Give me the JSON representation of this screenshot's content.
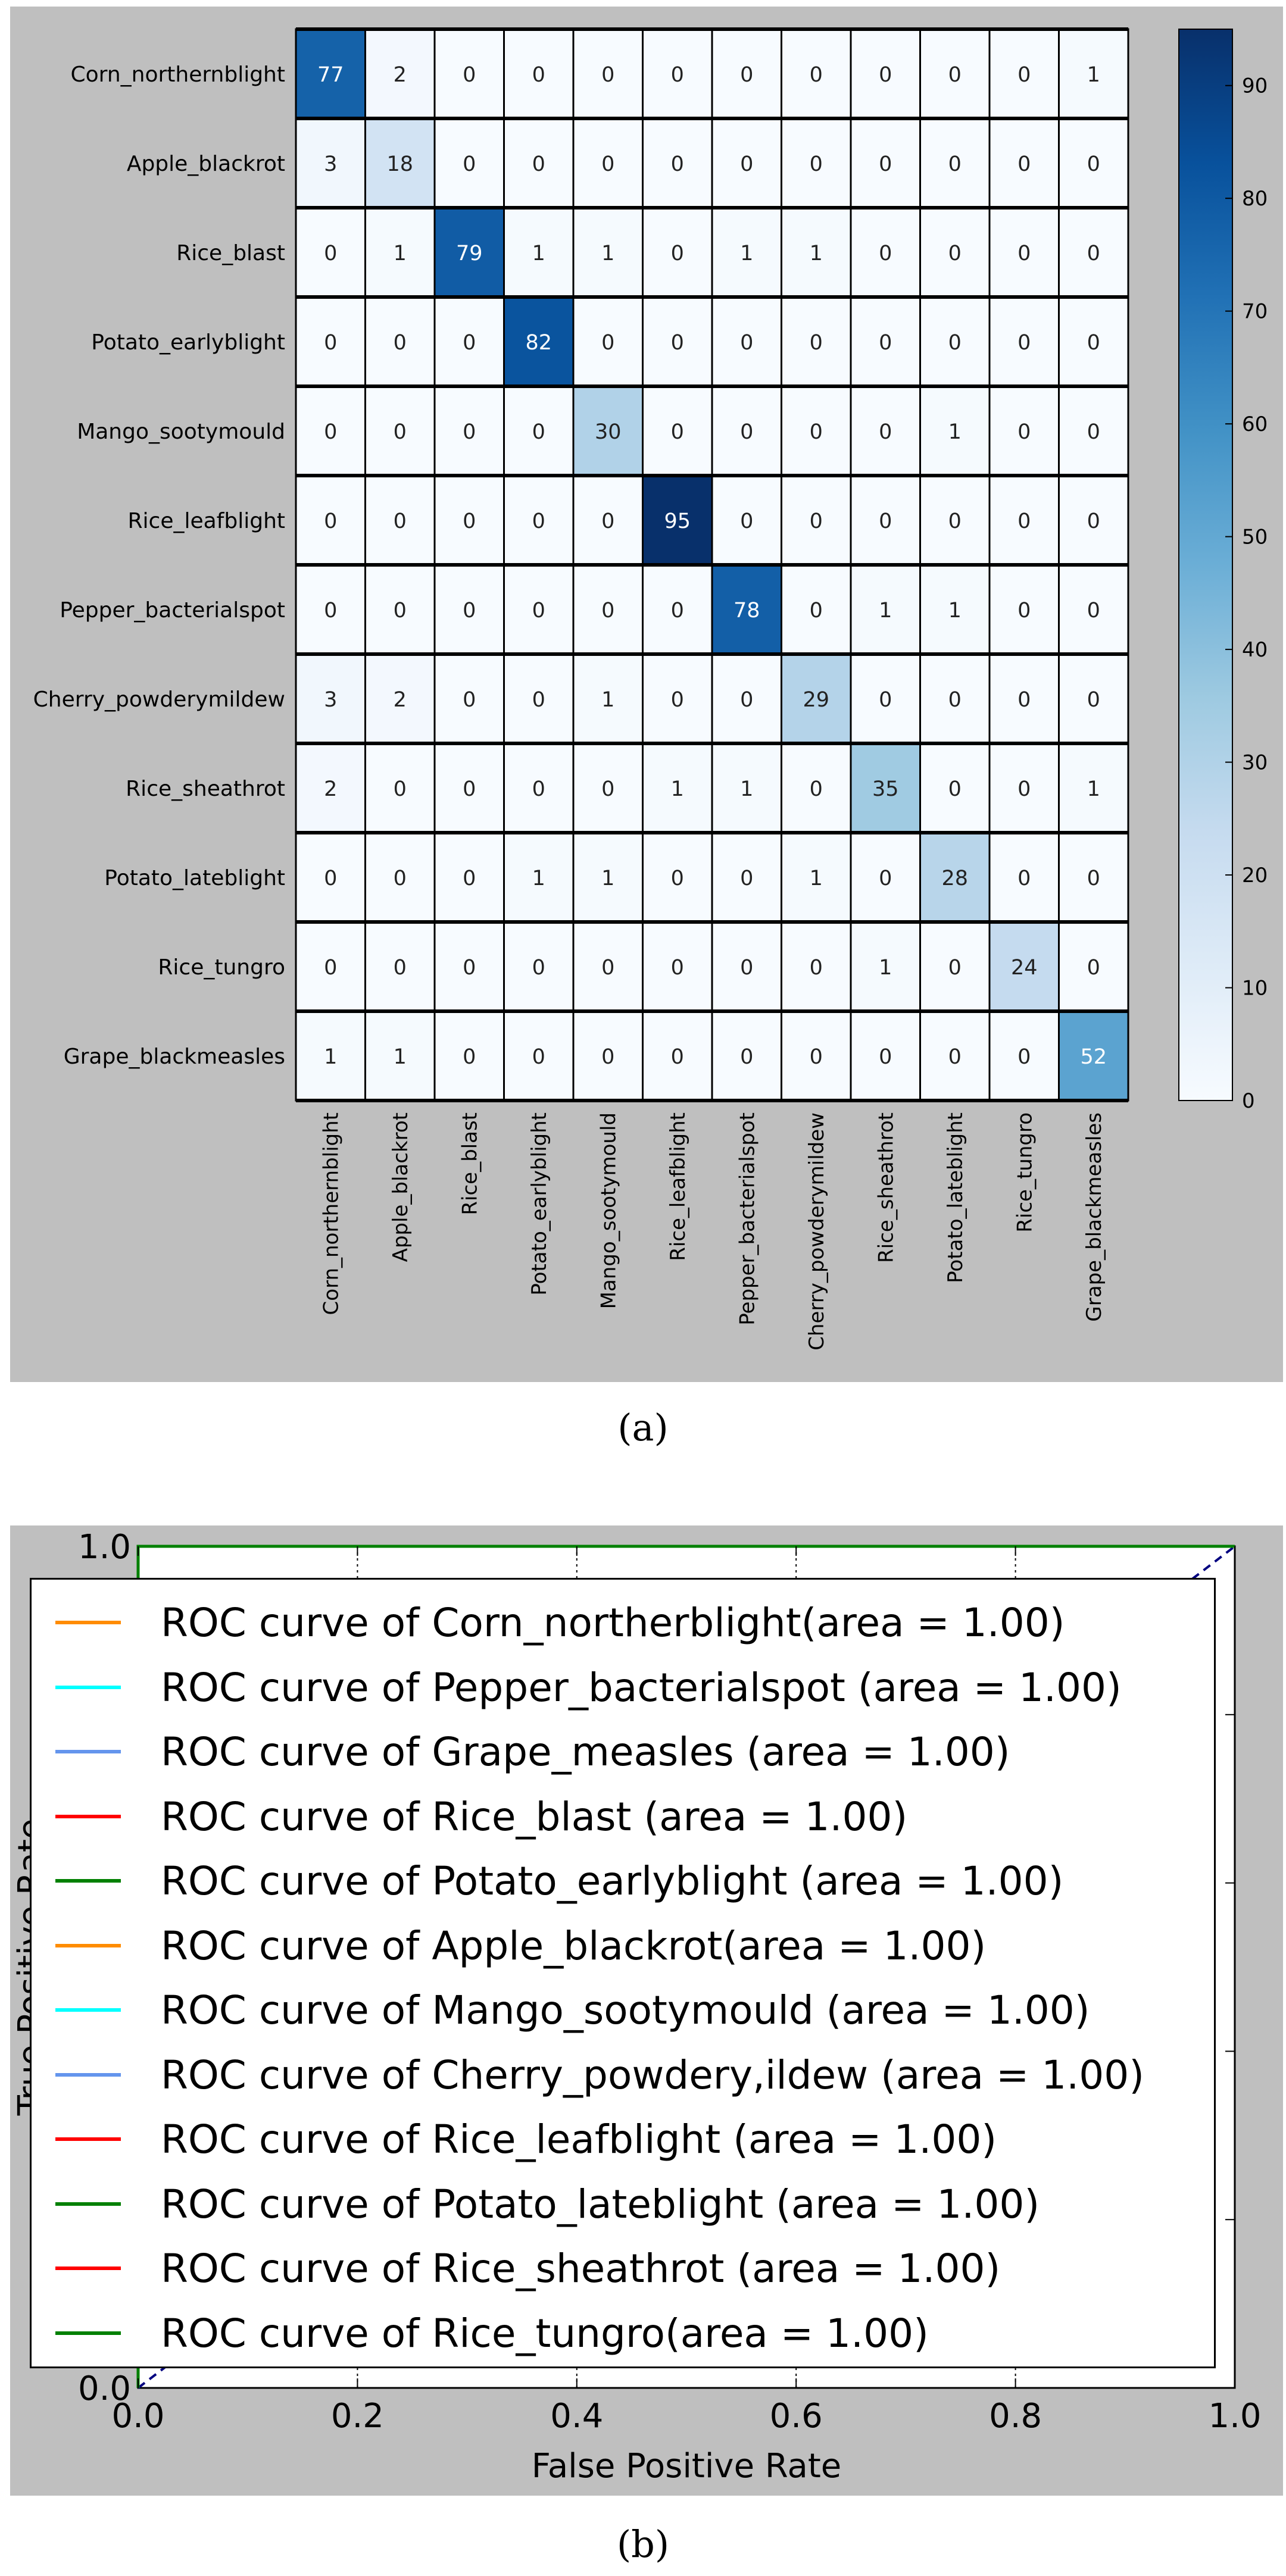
{
  "captions": {
    "a": "(a)",
    "b": "(b)"
  },
  "chart_data": [
    {
      "type": "heatmap",
      "title": "",
      "colormap": "Blues",
      "rows": [
        "Corn_northernblight",
        "Apple_blackrot",
        "Rice_blast",
        "Potato_earlyblight",
        "Mango_sootymould",
        "Rice_leafblight",
        "Pepper_bacterialspot",
        "Cherry_powderymildew",
        "Rice_sheathrot",
        "Potato_lateblight",
        "Rice_tungro",
        "Grape_blackmeasles"
      ],
      "columns": [
        "Corn_northernblight",
        "Apple_blackrot",
        "Rice_blast",
        "Potato_earlyblight",
        "Mango_sootymould",
        "Rice_leafblight",
        "Pepper_bacterialspot",
        "Cherry_powderymildew",
        "Rice_sheathrot",
        "Potato_lateblight",
        "Rice_tungro",
        "Grape_blackmeasles"
      ],
      "values": [
        [
          77,
          2,
          0,
          0,
          0,
          0,
          0,
          0,
          0,
          0,
          0,
          1
        ],
        [
          3,
          18,
          0,
          0,
          0,
          0,
          0,
          0,
          0,
          0,
          0,
          0
        ],
        [
          0,
          1,
          79,
          1,
          1,
          0,
          1,
          1,
          0,
          0,
          0,
          0
        ],
        [
          0,
          0,
          0,
          82,
          0,
          0,
          0,
          0,
          0,
          0,
          0,
          0
        ],
        [
          0,
          0,
          0,
          0,
          30,
          0,
          0,
          0,
          0,
          1,
          0,
          0
        ],
        [
          0,
          0,
          0,
          0,
          0,
          95,
          0,
          0,
          0,
          0,
          0,
          0
        ],
        [
          0,
          0,
          0,
          0,
          0,
          0,
          78,
          0,
          1,
          1,
          0,
          0
        ],
        [
          3,
          2,
          0,
          0,
          1,
          0,
          0,
          29,
          0,
          0,
          0,
          0
        ],
        [
          2,
          0,
          0,
          0,
          0,
          1,
          1,
          0,
          35,
          0,
          0,
          1
        ],
        [
          0,
          0,
          0,
          1,
          1,
          0,
          0,
          1,
          0,
          28,
          0,
          0
        ],
        [
          0,
          0,
          0,
          0,
          0,
          0,
          0,
          0,
          1,
          0,
          24,
          0
        ],
        [
          1,
          1,
          0,
          0,
          0,
          0,
          0,
          0,
          0,
          0,
          0,
          52
        ]
      ],
      "colorbar": {
        "range": [
          0,
          95
        ],
        "ticks": [
          "0",
          "10",
          "20",
          "30",
          "40",
          "50",
          "60",
          "70",
          "80",
          "90"
        ]
      }
    },
    {
      "type": "line",
      "title": "",
      "xlabel": "False Positive Rate",
      "ylabel": "True Positive Rate",
      "xlim": [
        0.0,
        1.0
      ],
      "ylim": [
        0.0,
        1.0
      ],
      "x_ticks": [
        "0.0",
        "0.2",
        "0.4",
        "0.6",
        "0.8",
        "1.0"
      ],
      "y_ticks": [
        "0.0",
        "1.0"
      ],
      "legend_position": "center",
      "series": [
        {
          "name": "ROC curve of Corn_northerblight(area = 1.00)",
          "color": "#ff8c00",
          "x": [
            0,
            0,
            1
          ],
          "y": [
            0,
            1,
            1
          ]
        },
        {
          "name": "ROC curve of Pepper_bacterialspot (area = 1.00)",
          "color": "#00ffff",
          "x": [
            0,
            0,
            1
          ],
          "y": [
            0,
            1,
            1
          ]
        },
        {
          "name": "ROC curve of Grape_measles (area = 1.00)",
          "color": "#6495ed",
          "x": [
            0,
            0,
            1
          ],
          "y": [
            0,
            1,
            1
          ]
        },
        {
          "name": "ROC curve of Rice_blast (area = 1.00)",
          "color": "#ff0000",
          "x": [
            0,
            0,
            1
          ],
          "y": [
            0,
            1,
            1
          ]
        },
        {
          "name": "ROC curve of Potato_earlyblight (area = 1.00)",
          "color": "#008000",
          "x": [
            0,
            0,
            1
          ],
          "y": [
            0,
            1,
            1
          ]
        },
        {
          "name": "ROC curve of Apple_blackrot(area = 1.00)",
          "color": "#ff8c00",
          "x": [
            0,
            0,
            1
          ],
          "y": [
            0,
            1,
            1
          ]
        },
        {
          "name": "ROC curve of Mango_sootymould (area = 1.00)",
          "color": "#00ffff",
          "x": [
            0,
            0,
            1
          ],
          "y": [
            0,
            1,
            1
          ]
        },
        {
          "name": "ROC curve of Cherry_powdery,ildew (area = 1.00)",
          "color": "#6495ed",
          "x": [
            0,
            0,
            1
          ],
          "y": [
            0,
            1,
            1
          ]
        },
        {
          "name": "ROC curve of Rice_leafblight (area = 1.00)",
          "color": "#ff0000",
          "x": [
            0,
            0,
            1
          ],
          "y": [
            0,
            1,
            1
          ]
        },
        {
          "name": "ROC curve of Potato_lateblight (area = 1.00)",
          "color": "#008000",
          "x": [
            0,
            0,
            1
          ],
          "y": [
            0,
            1,
            1
          ]
        },
        {
          "name": "ROC curve of Rice_sheathrot (area = 1.00)",
          "color": "#ff0000",
          "x": [
            0,
            0,
            1
          ],
          "y": [
            0,
            1,
            1
          ]
        },
        {
          "name": "ROC curve of Rice_tungro(area = 1.00)",
          "color": "#008000",
          "x": [
            0,
            0,
            1
          ],
          "y": [
            0,
            1,
            1
          ]
        }
      ],
      "diagonal": {
        "color": "#000080",
        "style": "dashed",
        "x": [
          0,
          1
        ],
        "y": [
          0,
          1
        ]
      }
    }
  ]
}
